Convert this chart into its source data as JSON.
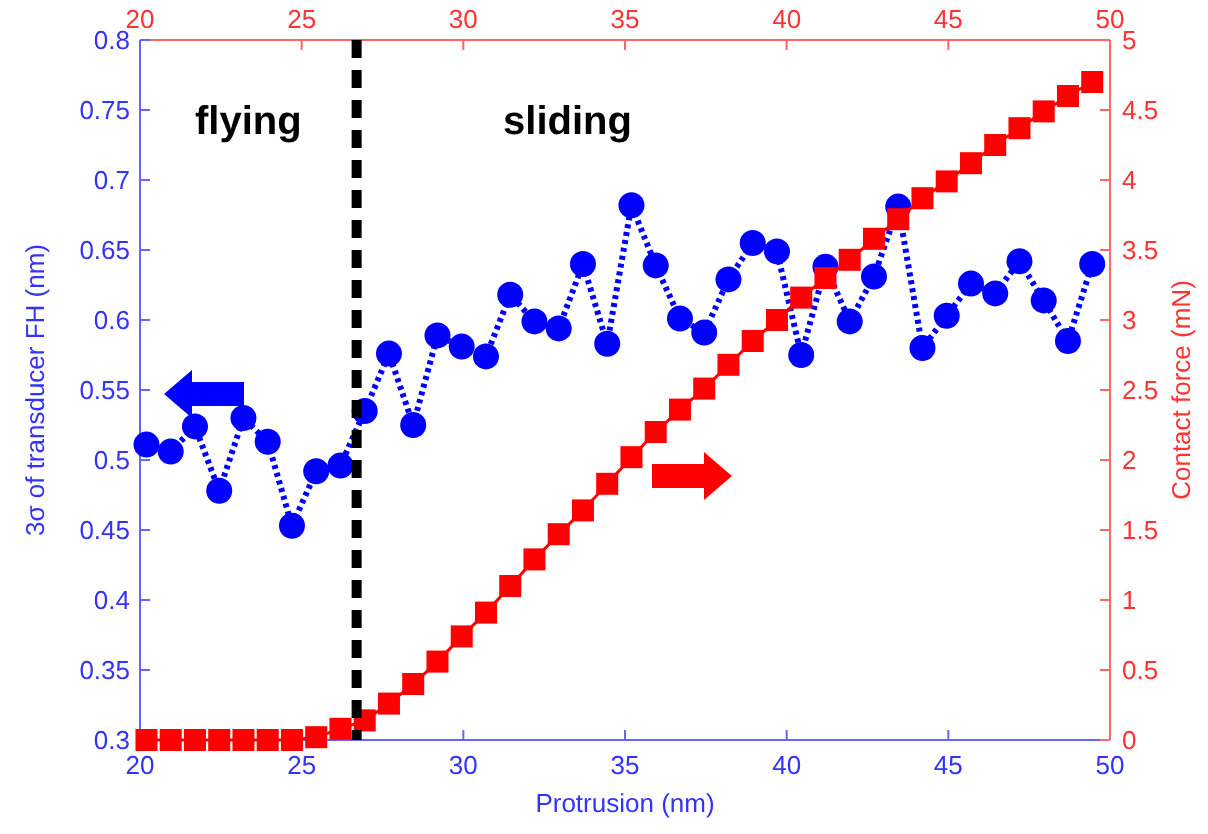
{
  "chart_data": {
    "type": "line",
    "xlabel": "Protrusion (nm)",
    "ylabel": "3σ of transducer FH (nm)",
    "y2label": "Contact force (mN)",
    "x": [
      20.2,
      20.95,
      21.7,
      22.45,
      23.2,
      23.95,
      24.7,
      25.45,
      26.2,
      26.95,
      27.7,
      28.45,
      29.2,
      29.95,
      30.7,
      31.45,
      32.2,
      32.95,
      33.7,
      34.45,
      35.2,
      35.95,
      36.7,
      37.45,
      38.2,
      38.95,
      39.7,
      40.45,
      41.2,
      41.95,
      42.7,
      43.45,
      44.2,
      44.95,
      45.7,
      46.45,
      47.2,
      47.95,
      48.7,
      49.45
    ],
    "series": [
      {
        "color": "#0000ff",
        "marker": "circle",
        "line_style": "dotted",
        "values": [
          0.511,
          0.506,
          0.524,
          0.478,
          0.53,
          0.513,
          0.453,
          0.492,
          0.496,
          0.535,
          0.576,
          0.525,
          0.589,
          0.581,
          0.574,
          0.618,
          0.599,
          0.594,
          0.64,
          0.583,
          0.682,
          0.639,
          0.601,
          0.591,
          0.629,
          0.655,
          0.649,
          0.575,
          0.638,
          0.599,
          0.631,
          0.681,
          0.58,
          0.603,
          0.626,
          0.619,
          0.642,
          0.614,
          0.585,
          0.64
        ]
      },
      {
        "color": "#ff0000",
        "marker": "square",
        "line_style": "solid",
        "axis": "y2",
        "values": [
          0,
          0,
          0,
          0,
          0,
          0,
          0,
          0.02,
          0.08,
          0.14,
          0.26,
          0.4,
          0.56,
          0.74,
          0.91,
          1.1,
          1.29,
          1.47,
          1.64,
          1.83,
          2.02,
          2.2,
          2.36,
          2.51,
          2.68,
          2.85,
          3.0,
          3.16,
          3.3,
          3.43,
          3.58,
          3.72,
          3.87,
          3.99,
          4.12,
          4.25,
          4.37,
          4.49,
          4.6,
          4.7
        ]
      }
    ],
    "xlim": [
      20,
      50
    ],
    "xticks": [
      20,
      25,
      30,
      35,
      40,
      45,
      50
    ],
    "x2lim": [
      20,
      50
    ],
    "x2ticks": [
      20,
      25,
      30,
      35,
      40,
      45,
      50
    ],
    "ylim": [
      0.3,
      0.8
    ],
    "yticks": [
      0.3,
      0.35,
      0.4,
      0.45,
      0.5,
      0.55,
      0.6,
      0.65,
      0.7,
      0.75,
      0.8
    ],
    "y2lim": [
      0,
      5
    ],
    "y2ticks": [
      0,
      0.5,
      1,
      1.5,
      2,
      2.5,
      3,
      3.5,
      4,
      4.5,
      5
    ],
    "ref_lines": [
      {
        "axis": "x",
        "value": 26.7,
        "color": "#000000",
        "line_style": "dashed"
      }
    ],
    "annotations": [
      "flying",
      "sliding"
    ]
  }
}
